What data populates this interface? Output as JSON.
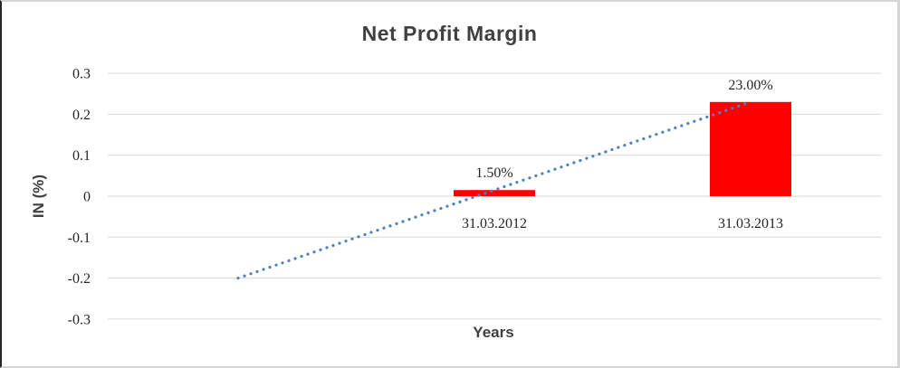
{
  "chart": {
    "title": "Net Profit Margin",
    "y_axis_title": "IN (%)",
    "x_axis_title": "Years"
  },
  "chart_data": {
    "type": "bar",
    "title": "Net Profit Margin",
    "xlabel": "Years",
    "ylabel": "IN (%)",
    "categories": [
      "31.03.2012",
      "31.03.2013"
    ],
    "series": [
      {
        "name": "Net Profit Margin",
        "values": [
          0.015,
          0.23
        ],
        "data_labels": [
          "1.50%",
          "23.00%"
        ],
        "color": "#FF0000"
      }
    ],
    "trendline": {
      "type": "linear",
      "style": "round-dot",
      "color": "#4F81BD",
      "points": [
        {
          "period": -1,
          "value": -0.2
        },
        {
          "period": 1,
          "value": 0.23
        }
      ]
    },
    "ylim": [
      -0.3,
      0.3
    ],
    "ytick_labels": [
      "0.3",
      "0.2",
      "0.1",
      "0",
      "-0.1",
      "-0.2",
      "-0.3"
    ],
    "ytick_values": [
      0.3,
      0.2,
      0.1,
      0,
      -0.1,
      -0.2,
      -0.3
    ],
    "grid": true,
    "legend_position": "none"
  },
  "colors": {
    "bar": "#FF0000",
    "trendline": "#4F81BD",
    "gridline": "#D9D9D9",
    "title_text": "#404040",
    "tick_text": "#262626",
    "background": "#FFFFFF"
  }
}
